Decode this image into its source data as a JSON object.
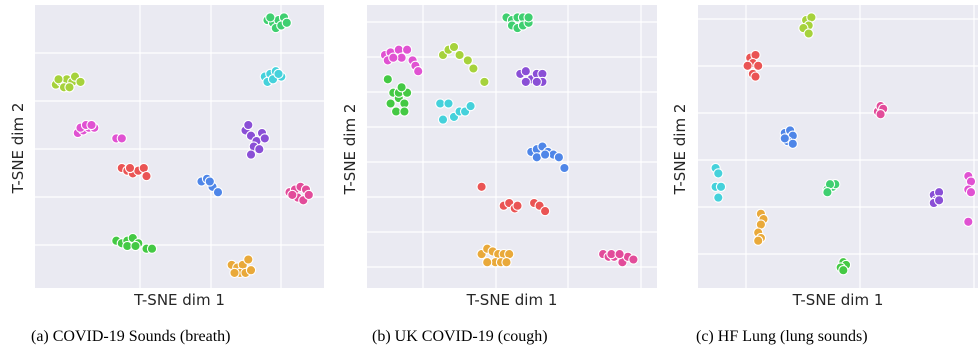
{
  "chart_data": [
    {
      "type": "scatter",
      "caption": "(a) COVID-19 Sounds (breath)",
      "xlabel": "T-SNE dim 1",
      "ylabel": "T-SNE dim 2",
      "grid": true,
      "background": "#eaeaf2",
      "clusters": [
        {
          "color": "#a6d23c",
          "points": [
            [
              0.05,
              0.73
            ],
            [
              0.07,
              0.74
            ],
            [
              0.09,
              0.75
            ],
            [
              0.11,
              0.74
            ],
            [
              0.08,
              0.72
            ],
            [
              0.12,
              0.76
            ],
            [
              0.06,
              0.75
            ],
            [
              0.1,
              0.72
            ],
            [
              0.14,
              0.74
            ]
          ]
        },
        {
          "color": "#e052d2",
          "points": [
            [
              0.13,
              0.55
            ],
            [
              0.15,
              0.56
            ],
            [
              0.17,
              0.57
            ],
            [
              0.19,
              0.57
            ],
            [
              0.14,
              0.57
            ],
            [
              0.16,
              0.58
            ],
            [
              0.18,
              0.58
            ],
            [
              0.27,
              0.53
            ],
            [
              0.29,
              0.53
            ]
          ]
        },
        {
          "color": "#ea5454",
          "points": [
            [
              0.29,
              0.42
            ],
            [
              0.31,
              0.41
            ],
            [
              0.33,
              0.4
            ],
            [
              0.35,
              0.41
            ],
            [
              0.37,
              0.42
            ],
            [
              0.38,
              0.39
            ],
            [
              0.32,
              0.42
            ]
          ]
        },
        {
          "color": "#44c944",
          "points": [
            [
              0.27,
              0.15
            ],
            [
              0.29,
              0.14
            ],
            [
              0.31,
              0.15
            ],
            [
              0.33,
              0.16
            ],
            [
              0.35,
              0.14
            ],
            [
              0.31,
              0.13
            ],
            [
              0.38,
              0.12
            ],
            [
              0.4,
              0.12
            ],
            [
              0.34,
              0.13
            ]
          ]
        },
        {
          "color": "#4f86e8",
          "points": [
            [
              0.58,
              0.37
            ],
            [
              0.6,
              0.38
            ],
            [
              0.62,
              0.35
            ],
            [
              0.64,
              0.33
            ],
            [
              0.61,
              0.37
            ]
          ]
        },
        {
          "color": "#8a4fd6",
          "points": [
            [
              0.74,
              0.56
            ],
            [
              0.76,
              0.54
            ],
            [
              0.78,
              0.52
            ],
            [
              0.8,
              0.55
            ],
            [
              0.77,
              0.5
            ],
            [
              0.79,
              0.49
            ],
            [
              0.76,
              0.47
            ],
            [
              0.81,
              0.53
            ],
            [
              0.75,
              0.58
            ]
          ]
        },
        {
          "color": "#45d1db",
          "points": [
            [
              0.81,
              0.76
            ],
            [
              0.83,
              0.77
            ],
            [
              0.85,
              0.78
            ],
            [
              0.87,
              0.76
            ],
            [
              0.82,
              0.74
            ],
            [
              0.84,
              0.75
            ],
            [
              0.86,
              0.77
            ]
          ]
        },
        {
          "color": "#3fcf70",
          "points": [
            [
              0.82,
              0.97
            ],
            [
              0.84,
              0.96
            ],
            [
              0.86,
              0.97
            ],
            [
              0.88,
              0.98
            ],
            [
              0.85,
              0.94
            ],
            [
              0.87,
              0.95
            ],
            [
              0.89,
              0.96
            ],
            [
              0.83,
              0.98
            ]
          ]
        },
        {
          "color": "#e9a93a",
          "points": [
            [
              0.69,
              0.06
            ],
            [
              0.71,
              0.05
            ],
            [
              0.73,
              0.06
            ],
            [
              0.75,
              0.08
            ],
            [
              0.72,
              0.03
            ],
            [
              0.74,
              0.03
            ],
            [
              0.7,
              0.03
            ],
            [
              0.76,
              0.04
            ]
          ]
        },
        {
          "color": "#e24c9a",
          "points": [
            [
              0.9,
              0.33
            ],
            [
              0.92,
              0.34
            ],
            [
              0.94,
              0.35
            ],
            [
              0.96,
              0.34
            ],
            [
              0.93,
              0.31
            ],
            [
              0.95,
              0.3
            ],
            [
              0.97,
              0.32
            ],
            [
              0.91,
              0.32
            ]
          ]
        }
      ]
    },
    {
      "type": "scatter",
      "caption": "(b) UK COVID-19 (cough)",
      "xlabel": "T-SNE dim 1",
      "ylabel": "T-SNE dim 2",
      "grid": true,
      "background": "#eaeaf2",
      "clusters": [
        {
          "color": "#e052d2",
          "points": [
            [
              0.04,
              0.84
            ],
            [
              0.06,
              0.85
            ],
            [
              0.09,
              0.86
            ],
            [
              0.12,
              0.86
            ],
            [
              0.05,
              0.82
            ],
            [
              0.1,
              0.83
            ],
            [
              0.14,
              0.82
            ],
            [
              0.15,
              0.8
            ],
            [
              0.16,
              0.78
            ],
            [
              0.07,
              0.83
            ]
          ]
        },
        {
          "color": "#a6d23c",
          "points": [
            [
              0.25,
              0.84
            ],
            [
              0.27,
              0.86
            ],
            [
              0.29,
              0.87
            ],
            [
              0.31,
              0.84
            ],
            [
              0.34,
              0.82
            ],
            [
              0.36,
              0.79
            ],
            [
              0.4,
              0.74
            ]
          ]
        },
        {
          "color": "#3fcf70",
          "points": [
            [
              0.48,
              0.98
            ],
            [
              0.5,
              0.97
            ],
            [
              0.52,
              0.98
            ],
            [
              0.54,
              0.98
            ],
            [
              0.5,
              0.95
            ],
            [
              0.52,
              0.94
            ],
            [
              0.54,
              0.95
            ],
            [
              0.56,
              0.96
            ],
            [
              0.56,
              0.98
            ]
          ]
        },
        {
          "color": "#44c944",
          "points": [
            [
              0.05,
              0.75
            ],
            [
              0.07,
              0.7
            ],
            [
              0.09,
              0.68
            ],
            [
              0.11,
              0.66
            ],
            [
              0.06,
              0.66
            ],
            [
              0.08,
              0.63
            ],
            [
              0.11,
              0.63
            ],
            [
              0.09,
              0.7
            ],
            [
              0.12,
              0.7
            ],
            [
              0.1,
              0.72
            ]
          ]
        },
        {
          "color": "#45d1db",
          "points": [
            [
              0.24,
              0.66
            ],
            [
              0.27,
              0.66
            ],
            [
              0.29,
              0.61
            ],
            [
              0.31,
              0.63
            ],
            [
              0.33,
              0.63
            ],
            [
              0.35,
              0.65
            ],
            [
              0.25,
              0.6
            ]
          ]
        },
        {
          "color": "#8a4fd6",
          "points": [
            [
              0.53,
              0.77
            ],
            [
              0.55,
              0.78
            ],
            [
              0.57,
              0.75
            ],
            [
              0.59,
              0.77
            ],
            [
              0.61,
              0.77
            ],
            [
              0.55,
              0.74
            ],
            [
              0.61,
              0.74
            ],
            [
              0.59,
              0.74
            ]
          ]
        },
        {
          "color": "#4f86e8",
          "points": [
            [
              0.57,
              0.48
            ],
            [
              0.59,
              0.49
            ],
            [
              0.61,
              0.5
            ],
            [
              0.63,
              0.48
            ],
            [
              0.65,
              0.47
            ],
            [
              0.67,
              0.46
            ],
            [
              0.69,
              0.42
            ],
            [
              0.59,
              0.46
            ],
            [
              0.62,
              0.47
            ]
          ]
        },
        {
          "color": "#ea5454",
          "points": [
            [
              0.39,
              0.35
            ],
            [
              0.47,
              0.28
            ],
            [
              0.49,
              0.29
            ],
            [
              0.51,
              0.27
            ],
            [
              0.52,
              0.28
            ],
            [
              0.58,
              0.29
            ],
            [
              0.6,
              0.28
            ],
            [
              0.62,
              0.26
            ]
          ]
        },
        {
          "color": "#e9a93a",
          "points": [
            [
              0.39,
              0.1
            ],
            [
              0.41,
              0.12
            ],
            [
              0.43,
              0.11
            ],
            [
              0.45,
              0.1
            ],
            [
              0.47,
              0.1
            ],
            [
              0.49,
              0.1
            ],
            [
              0.44,
              0.07
            ],
            [
              0.46,
              0.07
            ],
            [
              0.48,
              0.07
            ],
            [
              0.41,
              0.07
            ]
          ]
        },
        {
          "color": "#e24c9a",
          "points": [
            [
              0.83,
              0.1
            ],
            [
              0.85,
              0.09
            ],
            [
              0.87,
              0.09
            ],
            [
              0.9,
              0.07
            ],
            [
              0.92,
              0.09
            ],
            [
              0.94,
              0.08
            ],
            [
              0.86,
              0.1
            ],
            [
              0.89,
              0.1
            ]
          ]
        }
      ]
    },
    {
      "type": "scatter",
      "caption": "(c) HF Lung (lung sounds)",
      "xlabel": "T-SNE dim 1",
      "ylabel": "T-SNE dim 2",
      "grid": true,
      "background": "#eaeaf2",
      "clusters": [
        {
          "color": "#a6d23c",
          "points": [
            [
              0.38,
              0.97
            ],
            [
              0.4,
              0.98
            ],
            [
              0.39,
              0.95
            ],
            [
              0.37,
              0.94
            ],
            [
              0.39,
              0.92
            ]
          ]
        },
        {
          "color": "#ea5454",
          "points": [
            [
              0.17,
              0.83
            ],
            [
              0.19,
              0.84
            ],
            [
              0.18,
              0.81
            ],
            [
              0.2,
              0.8
            ],
            [
              0.16,
              0.8
            ],
            [
              0.18,
              0.77
            ],
            [
              0.19,
              0.76
            ]
          ]
        },
        {
          "color": "#e24c9a",
          "points": [
            [
              0.65,
              0.63
            ],
            [
              0.66,
              0.65
            ],
            [
              0.67,
              0.64
            ],
            [
              0.66,
              0.62
            ]
          ]
        },
        {
          "color": "#4f86e8",
          "points": [
            [
              0.3,
              0.55
            ],
            [
              0.32,
              0.56
            ],
            [
              0.33,
              0.54
            ],
            [
              0.31,
              0.52
            ],
            [
              0.33,
              0.51
            ],
            [
              0.3,
              0.53
            ]
          ]
        },
        {
          "color": "#45d1db",
          "points": [
            [
              0.04,
              0.42
            ],
            [
              0.05,
              0.4
            ],
            [
              0.04,
              0.35
            ],
            [
              0.06,
              0.35
            ],
            [
              0.05,
              0.31
            ]
          ]
        },
        {
          "color": "#3fcf70",
          "points": [
            [
              0.46,
              0.34
            ],
            [
              0.48,
              0.35
            ],
            [
              0.49,
              0.36
            ],
            [
              0.47,
              0.36
            ],
            [
              0.46,
              0.33
            ]
          ]
        },
        {
          "color": "#e9a93a",
          "points": [
            [
              0.21,
              0.25
            ],
            [
              0.22,
              0.23
            ],
            [
              0.21,
              0.21
            ],
            [
              0.2,
              0.18
            ],
            [
              0.21,
              0.16
            ],
            [
              0.2,
              0.15
            ]
          ]
        },
        {
          "color": "#44c944",
          "points": [
            [
              0.52,
              0.07
            ],
            [
              0.53,
              0.06
            ],
            [
              0.51,
              0.05
            ],
            [
              0.52,
              0.04
            ]
          ]
        },
        {
          "color": "#8a4fd6",
          "points": [
            [
              0.86,
              0.32
            ],
            [
              0.88,
              0.33
            ],
            [
              0.87,
              0.3
            ],
            [
              0.86,
              0.29
            ],
            [
              0.88,
              0.3
            ]
          ]
        },
        {
          "color": "#e052d2",
          "points": [
            [
              0.99,
              0.39
            ],
            [
              1.0,
              0.37
            ],
            [
              0.99,
              0.34
            ],
            [
              1.0,
              0.33
            ],
            [
              0.99,
              0.22
            ]
          ]
        }
      ]
    }
  ]
}
